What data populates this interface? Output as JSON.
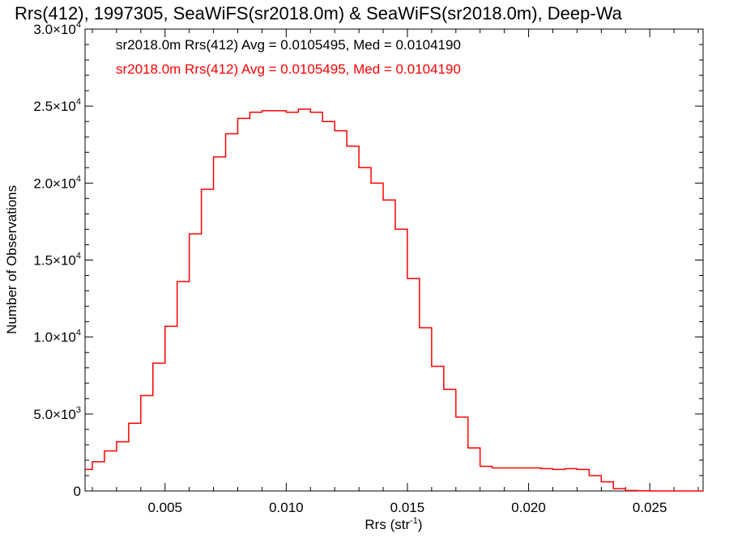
{
  "chart_data": {
    "type": "line",
    "title": "Rrs(412), 1997305, SeaWiFS(sr2018.0m) & SeaWiFS(sr2018.0m), Deep-Wa",
    "xlabel": "Rrs (str",
    "xlabel_sup": "-1",
    "xlabel_close": ")",
    "ylabel": "Number of Observations",
    "xlim": [
      0.0017,
      0.0272
    ],
    "ylim": [
      0,
      30000
    ],
    "x_ticks": [
      {
        "value": 0.005,
        "label": "0.005"
      },
      {
        "value": 0.01,
        "label": "0.010"
      },
      {
        "value": 0.015,
        "label": "0.015"
      },
      {
        "value": 0.02,
        "label": "0.020"
      },
      {
        "value": 0.025,
        "label": "0.025"
      }
    ],
    "y_ticks": [
      {
        "value": 0,
        "mant": "0",
        "exp": ""
      },
      {
        "value": 5000,
        "mant": "5.0×10",
        "exp": "3"
      },
      {
        "value": 10000,
        "mant": "1.0×10",
        "exp": "4"
      },
      {
        "value": 15000,
        "mant": "1.5×10",
        "exp": "4"
      },
      {
        "value": 20000,
        "mant": "2.0×10",
        "exp": "4"
      },
      {
        "value": 25000,
        "mant": "2.5×10",
        "exp": "4"
      },
      {
        "value": 30000,
        "mant": "3.0×10",
        "exp": "4"
      }
    ],
    "legend": [
      {
        "text": "sr2018.0m Rrs(412) Avg = 0.0105495, Med = 0.0104190",
        "color": "#000000"
      },
      {
        "text": "sr2018.0m Rrs(412) Avg = 0.0105495, Med = 0.0104190",
        "color": "#ff0000"
      }
    ],
    "legend_position": "top-left",
    "series": [
      {
        "color": "#ff0000",
        "style": "step",
        "x": [
          0.0017,
          0.002,
          0.0025,
          0.003,
          0.0035,
          0.004,
          0.0045,
          0.005,
          0.0055,
          0.006,
          0.0065,
          0.007,
          0.0075,
          0.008,
          0.0085,
          0.009,
          0.0095,
          0.01,
          0.0105,
          0.011,
          0.0115,
          0.012,
          0.0125,
          0.013,
          0.0135,
          0.014,
          0.0145,
          0.015,
          0.0155,
          0.016,
          0.0165,
          0.017,
          0.0175,
          0.018,
          0.0185,
          0.019,
          0.0195,
          0.02,
          0.0205,
          0.021,
          0.0215,
          0.022,
          0.0225,
          0.023,
          0.0235,
          0.024,
          0.0245,
          0.025,
          0.026,
          0.0272
        ],
        "y": [
          1400,
          1900,
          2600,
          3200,
          4400,
          6200,
          8300,
          10700,
          13600,
          16700,
          19600,
          21700,
          23200,
          24200,
          24600,
          24700,
          24700,
          24600,
          24800,
          24600,
          24000,
          23400,
          22400,
          21000,
          20000,
          18900,
          17000,
          13800,
          10600,
          8100,
          6600,
          4800,
          2800,
          1600,
          1500,
          1500,
          1500,
          1500,
          1450,
          1400,
          1450,
          1400,
          1000,
          600,
          150,
          30,
          10,
          0,
          0,
          0
        ]
      }
    ]
  }
}
